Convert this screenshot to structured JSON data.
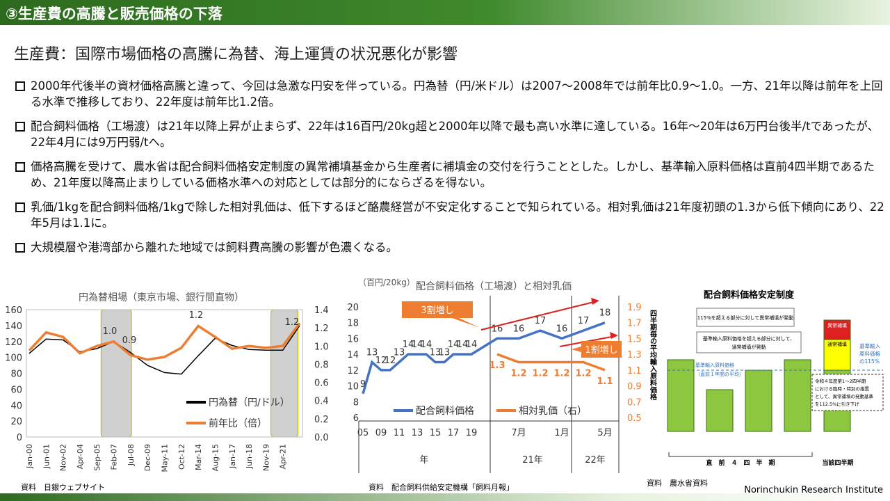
{
  "header": {
    "title": "③生産費の高騰と販売価格の下落"
  },
  "subtitle": "生産費：国際市場価格の高騰に為替、海上運賃の状況悪化が影響",
  "bullets": [
    "2000年代後半の資材価格高騰と違って、今回は急激な円安を伴っている。円為替（円/米ドル）は2007～2008年では前年比0.9～1.0。一方、21年以降は前年を上回る水準で推移しており、22年度は前年比1.2倍。",
    "配合飼料価格（工場渡）は21年以降上昇が止まらず、22年は16百円/20kg超と2000年以降で最も高い水準に達している。16年～20年は6万円台後半/tであったが、22年4月には9万円弱/tへ。",
    "価格高騰を受けて、農水省は配合飼料価格安定制度の異常補填基金から生産者に補填金の交付を行うこととした。しかし、基準輸入原料価格は直前4四半期であるため、21年度以降高止まりしている価格水準への対応としては部分的にならざるを得ない。",
    "乳価/1kgを配合飼料価格/1kgで除した相対乳価は、低下するほど酪農経営が不安定化することで知られている。相対乳価は21年度初頭の1.3から低下傾向にあり、22年5月は1.1に。",
    "大規模層や港湾部から離れた地域では飼料費高騰の影響が色濃くなる。"
  ],
  "chart_data": [
    {
      "type": "line",
      "title": "円為替相場（東京市場、銀行間直物）",
      "categories": [
        "Jan-00",
        "Jun-01",
        "Nov-02",
        "Apr-04",
        "Sep-05",
        "Feb-07",
        "Jul-08",
        "Dec-09",
        "May-11",
        "Oct-12",
        "Mar-14",
        "Aug-15",
        "Jan-17",
        "Jun-18",
        "Nov-19",
        "Apr-21",
        null
      ],
      "series": [
        {
          "name": "円為替（円/ドル）",
          "color": "#000000",
          "values": [
            105,
            123,
            122,
            107,
            111,
            120,
            106,
            90,
            81,
            79,
            102,
            124,
            115,
            110,
            109,
            109,
            140
          ]
        },
        {
          "name": "前年比（倍）",
          "color": "#ed7d31",
          "axis": "y2",
          "values": [
            0.95,
            1.15,
            1.1,
            0.92,
            1.0,
            1.05,
            0.9,
            0.85,
            0.88,
            0.98,
            1.22,
            1.1,
            0.97,
            1.0,
            0.98,
            1.0,
            1.25
          ]
        }
      ],
      "ylim": [
        0,
        160
      ],
      "yticks": [
        0,
        20,
        40,
        60,
        80,
        100,
        120,
        140,
        160
      ],
      "y2lim": [
        0,
        1.4
      ],
      "y2ticks": [
        {
          "value": 0,
          "label": "0.0"
        },
        0.2,
        0.4,
        0.6,
        0.8,
        {
          "value": 1,
          "label": "1.0"
        },
        1.2,
        1.4
      ],
      "annotations": [
        "1.0",
        "0.9",
        "1.2",
        "1.2"
      ]
    },
    {
      "type": "line",
      "title": "配合飼料価格（工場渡）と相対乳価",
      "y_unit": "（百円/20kg）",
      "categories": [
        "05",
        null,
        "09",
        null,
        "11",
        null,
        "13",
        null,
        "15",
        null,
        "17",
        null,
        "19",
        null,
        "7月",
        null,
        "1月",
        null,
        "5月"
      ],
      "groups": [
        "年",
        "21年",
        "22年"
      ],
      "series": [
        {
          "name": "配合飼料価格",
          "color": "#4472c4",
          "values": [
            9,
            13,
            12,
            12,
            13,
            14,
            14,
            14,
            13,
            13,
            14,
            14,
            14,
            16,
            16,
            17,
            16,
            17,
            18
          ]
        },
        {
          "name": "相対乳価（右）",
          "color": "#ed7d31",
          "axis": "y2",
          "values": [
            null,
            null,
            null,
            null,
            null,
            null,
            null,
            null,
            null,
            null,
            null,
            null,
            null,
            1.3,
            1.2,
            1.2,
            1.2,
            1.2,
            1.1
          ]
        }
      ],
      "ylim": [
        6,
        20
      ],
      "yticks": [
        6,
        8,
        10,
        12,
        14,
        16,
        18,
        20
      ],
      "y2lim": [
        0.5,
        1.9
      ],
      "y2ticks": [
        0.5,
        0.7,
        0.9,
        1.1,
        1.3,
        1.5,
        1.7,
        1.9
      ],
      "annotations": [
        "3割増し",
        "1割増し"
      ]
    }
  ],
  "diagram": {
    "title": "配合飼料価格安定制度",
    "note_abnormal": "115%を超える部分に対して異常補填が発動",
    "note_normal_1": "基準輸入原料価格を超える部分に対して、",
    "note_normal_2": "通常補填が発動",
    "abnormal": "異常補填",
    "normal": "通常補填",
    "threshold_1": "基準輸入",
    "threshold_2": "原料価格",
    "threshold_3": "の115%",
    "base_1": "基準輸入原料価格",
    "base_2": "（直前１年間の平均）",
    "measure": [
      "令和４年度第1～2四半期",
      "における臨時・特別の措置",
      "として、異常補填の発動基準",
      "を112.5%に引き下げ"
    ],
    "axis": "四半期毎の平均輸入原料価格",
    "prior": "直　前　４　四　半　期",
    "current": "当該四半期"
  },
  "sources": [
    "資料　日銀ウェブサイト",
    "資料　配合飼料供給安定機構「飼料月報」",
    "資料　農水省資料"
  ],
  "footer": "Norinchukin Research Institute"
}
